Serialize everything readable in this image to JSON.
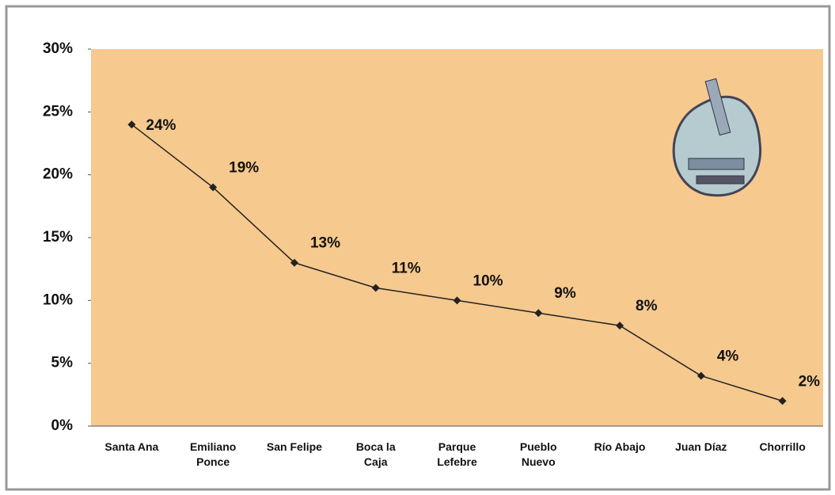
{
  "chart_data": {
    "type": "line",
    "categories": [
      "Santa Ana",
      "Emiliano\nPonce",
      "San Felipe",
      "Boca la\nCaja",
      "Parque\nLefebre",
      "Pueblo\nNuevo",
      "Río Abajo",
      "Juan Díaz",
      "Chorrillo"
    ],
    "series": [
      {
        "color": "#222222",
        "values": [
          24,
          19,
          13,
          11,
          10,
          9,
          8,
          4,
          2
        ],
        "value_labels": [
          "24%",
          "19%",
          "13%",
          "11%",
          "10%",
          "9%",
          "8%",
          "4%",
          "2%"
        ]
      }
    ],
    "ylim": [
      0,
      30
    ],
    "yticks": [
      {
        "value": 0,
        "label": "0%"
      },
      {
        "value": 5,
        "label": "5%"
      },
      {
        "value": 10,
        "label": "10%"
      },
      {
        "value": 15,
        "label": "15%"
      },
      {
        "value": 20,
        "label": "20%"
      },
      {
        "value": 25,
        "label": "25%"
      },
      {
        "value": 30,
        "label": "30%"
      }
    ],
    "background": "#f6c98e"
  }
}
